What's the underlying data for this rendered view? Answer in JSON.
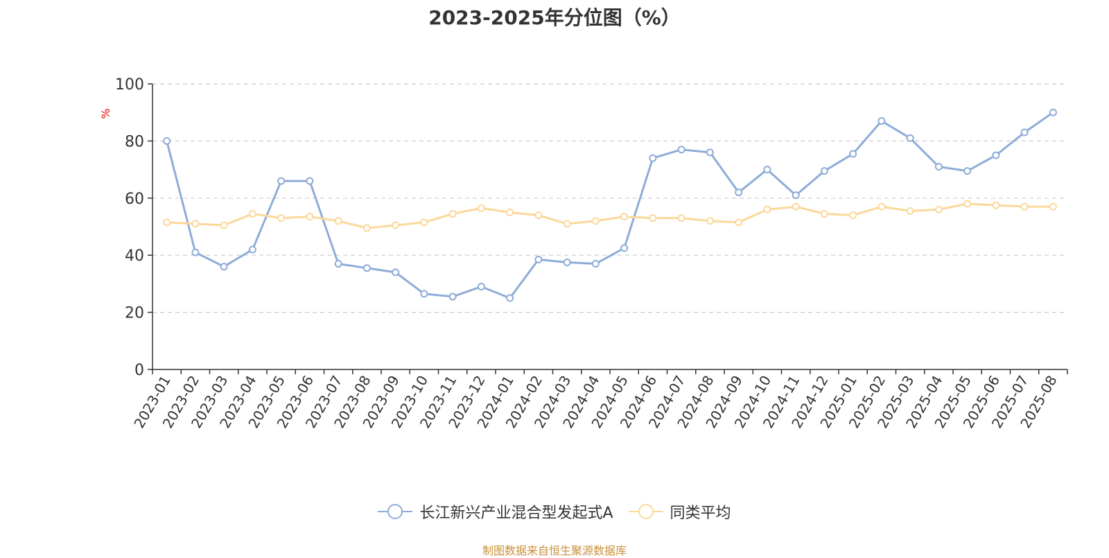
{
  "chart_data": {
    "type": "line",
    "title": "2023-2025年分位图（%）",
    "ylabel": "%",
    "xlabel": "",
    "ylim": [
      0,
      100
    ],
    "yticks": [
      0,
      20,
      40,
      60,
      80,
      100
    ],
    "grid": true,
    "legend_position": "bottom",
    "categories": [
      "2023-01",
      "2023-02",
      "2023-03",
      "2023-04",
      "2023-05",
      "2023-06",
      "2023-07",
      "2023-08",
      "2023-09",
      "2023-10",
      "2023-11",
      "2023-12",
      "2024-01",
      "2024-02",
      "2024-03",
      "2024-04",
      "2024-05",
      "2024-06",
      "2024-07",
      "2024-08",
      "2024-09",
      "2024-10",
      "2024-11",
      "2024-12",
      "2025-01",
      "2025-02",
      "2025-03",
      "2025-04",
      "2025-05",
      "2025-06",
      "2025-07",
      "2025-08"
    ],
    "series": [
      {
        "name": "长江新兴产业混合型发起式A",
        "color": "#8eacd8",
        "values": [
          80,
          41,
          36,
          42,
          66,
          66,
          37,
          35.5,
          34,
          26.5,
          25.5,
          29,
          25,
          38.5,
          37.5,
          37,
          42.5,
          74,
          77,
          76,
          62,
          70,
          61,
          69.5,
          75.5,
          87,
          81,
          71,
          69.5,
          75,
          83,
          90
        ]
      },
      {
        "name": "同类平均",
        "color": "#fbd89a",
        "values": [
          51.5,
          51,
          50.5,
          54.5,
          53,
          53.5,
          52,
          49.5,
          50.5,
          51.5,
          54.5,
          56.5,
          55,
          54,
          51,
          52,
          53.5,
          53,
          53,
          52,
          51.5,
          56,
          57,
          54.5,
          54,
          57,
          55.5,
          56,
          58,
          57.5,
          57,
          57
        ]
      }
    ]
  },
  "source_note": "制图数据来自恒生聚源数据库"
}
